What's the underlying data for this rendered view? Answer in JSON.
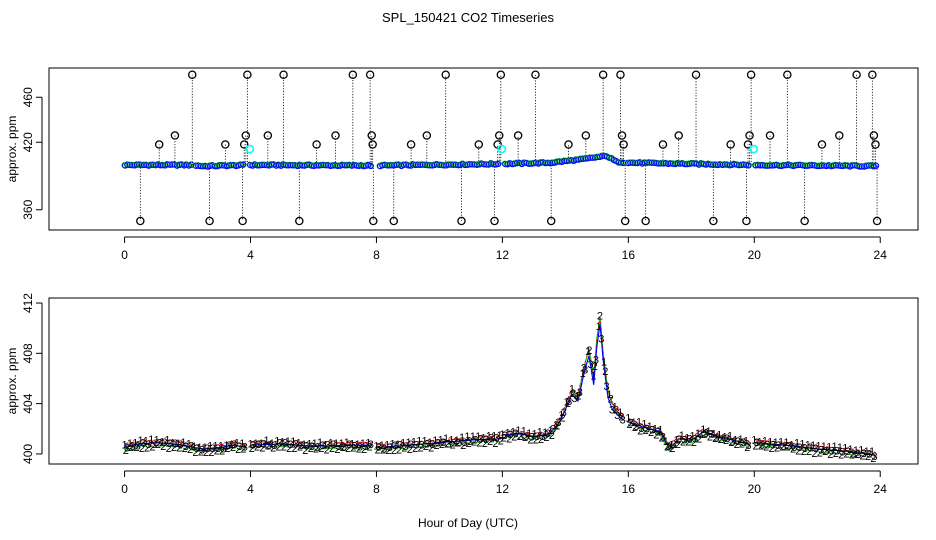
{
  "title": "SPL_150421  CO2 Timeseries",
  "xlabel": "Hour of Day (UTC)",
  "chart_data": [
    {
      "type": "scatter",
      "name": "top-panel",
      "ylabel": "approx. ppm",
      "xlim": [
        -2.4,
        25.2
      ],
      "ylim": [
        342,
        486
      ],
      "xticks": [
        0,
        4,
        8,
        12,
        16,
        20,
        24
      ],
      "yticks": [
        360,
        420,
        460
      ],
      "ytick_labels": [
        "360",
        "420",
        "460"
      ],
      "baseline_profile": [
        [
          0,
          400
        ],
        [
          2,
          400
        ],
        [
          2.5,
          399
        ],
        [
          4,
          400
        ],
        [
          8,
          399.5
        ],
        [
          12,
          401
        ],
        [
          13.5,
          402
        ],
        [
          14.5,
          405
        ],
        [
          15,
          407
        ],
        [
          15.3,
          408
        ],
        [
          15.6,
          403
        ],
        [
          16,
          402
        ],
        [
          17,
          401.5
        ],
        [
          18,
          401
        ],
        [
          19,
          400.5
        ],
        [
          20,
          400
        ],
        [
          22,
          399.5
        ],
        [
          23.8,
          399
        ]
      ],
      "gaps": [
        [
          2.1,
          2.25
        ],
        [
          3.8,
          3.95
        ],
        [
          7.85,
          8.05
        ],
        [
          11.9,
          12.05
        ],
        [
          15.85,
          15.95
        ],
        [
          19.85,
          19.95
        ]
      ],
      "spikes": [
        {
          "x": 0.5,
          "y": 350
        },
        {
          "x": 1.1,
          "y": 418
        },
        {
          "x": 1.6,
          "y": 426
        },
        {
          "x": 2.15,
          "y": 480
        },
        {
          "x": 2.7,
          "y": 350
        },
        {
          "x": 3.2,
          "y": 418
        },
        {
          "x": 3.75,
          "y": 350
        },
        {
          "x": 3.8,
          "y": 418
        },
        {
          "x": 3.85,
          "y": 426
        },
        {
          "x": 3.9,
          "y": 480
        },
        {
          "x": 4.55,
          "y": 426
        },
        {
          "x": 5.05,
          "y": 480
        },
        {
          "x": 5.55,
          "y": 350
        },
        {
          "x": 6.1,
          "y": 418
        },
        {
          "x": 6.7,
          "y": 426
        },
        {
          "x": 7.25,
          "y": 480
        },
        {
          "x": 7.8,
          "y": 480
        },
        {
          "x": 7.85,
          "y": 426
        },
        {
          "x": 7.88,
          "y": 418
        },
        {
          "x": 7.9,
          "y": 350
        },
        {
          "x": 8.55,
          "y": 350
        },
        {
          "x": 9.1,
          "y": 418
        },
        {
          "x": 9.6,
          "y": 426
        },
        {
          "x": 10.2,
          "y": 480
        },
        {
          "x": 10.7,
          "y": 350
        },
        {
          "x": 11.25,
          "y": 418
        },
        {
          "x": 11.75,
          "y": 350
        },
        {
          "x": 11.85,
          "y": 418
        },
        {
          "x": 11.9,
          "y": 426
        },
        {
          "x": 11.95,
          "y": 480
        },
        {
          "x": 12.5,
          "y": 426
        },
        {
          "x": 13.05,
          "y": 480
        },
        {
          "x": 13.55,
          "y": 350
        },
        {
          "x": 14.1,
          "y": 418
        },
        {
          "x": 14.65,
          "y": 426
        },
        {
          "x": 15.2,
          "y": 480
        },
        {
          "x": 15.75,
          "y": 480
        },
        {
          "x": 15.8,
          "y": 426
        },
        {
          "x": 15.85,
          "y": 418
        },
        {
          "x": 15.9,
          "y": 350
        },
        {
          "x": 16.55,
          "y": 350
        },
        {
          "x": 17.1,
          "y": 418
        },
        {
          "x": 17.6,
          "y": 426
        },
        {
          "x": 18.15,
          "y": 480
        },
        {
          "x": 18.7,
          "y": 350
        },
        {
          "x": 19.25,
          "y": 418
        },
        {
          "x": 19.75,
          "y": 350
        },
        {
          "x": 19.8,
          "y": 418
        },
        {
          "x": 19.85,
          "y": 426
        },
        {
          "x": 19.9,
          "y": 480
        },
        {
          "x": 20.5,
          "y": 426
        },
        {
          "x": 21.05,
          "y": 480
        },
        {
          "x": 21.6,
          "y": 350
        },
        {
          "x": 22.15,
          "y": 418
        },
        {
          "x": 22.7,
          "y": 426
        },
        {
          "x": 23.25,
          "y": 480
        },
        {
          "x": 23.75,
          "y": 480
        },
        {
          "x": 23.8,
          "y": 426
        },
        {
          "x": 23.85,
          "y": 418
        },
        {
          "x": 23.9,
          "y": 350
        }
      ],
      "cyan_points": [
        {
          "x": 3.98,
          "y": 414
        },
        {
          "x": 11.98,
          "y": 414
        },
        {
          "x": 19.98,
          "y": 414
        }
      ],
      "colors": {
        "spike": "#000000",
        "baseline": "#0000ff",
        "baseline_alt": "#00cc00",
        "cyan": "#00ffff"
      }
    },
    {
      "type": "line",
      "name": "bottom-panel",
      "ylabel": "approx. ppm",
      "xlim": [
        -2.4,
        25.2
      ],
      "ylim": [
        399.2,
        412.4
      ],
      "xticks": [
        0,
        4,
        8,
        12,
        16,
        20,
        24
      ],
      "yticks": [
        400,
        404,
        408,
        412
      ],
      "ytick_labels": [
        "400",
        "404",
        "408",
        "412"
      ],
      "segments": [
        [
          0,
          3.85
        ],
        [
          4.0,
          7.85
        ],
        [
          8.0,
          11.95
        ],
        [
          12.0,
          15.85
        ],
        [
          16.0,
          19.85
        ],
        [
          20.0,
          23.85
        ]
      ],
      "profile": [
        [
          0,
          400.6
        ],
        [
          0.5,
          400.8
        ],
        [
          1,
          400.9
        ],
        [
          1.5,
          400.8
        ],
        [
          2,
          400.6
        ],
        [
          2.5,
          400.4
        ],
        [
          3,
          400.5
        ],
        [
          3.5,
          400.7
        ],
        [
          3.85,
          400.5
        ],
        [
          4,
          400.7
        ],
        [
          5,
          400.8
        ],
        [
          6,
          400.6
        ],
        [
          7,
          400.7
        ],
        [
          7.85,
          400.7
        ],
        [
          8,
          400.5
        ],
        [
          9,
          400.7
        ],
        [
          10,
          400.9
        ],
        [
          11,
          401.1
        ],
        [
          11.95,
          401.2
        ],
        [
          12,
          401.5
        ],
        [
          12.5,
          401.6
        ],
        [
          13,
          401.4
        ],
        [
          13.5,
          401.6
        ],
        [
          13.8,
          402.5
        ],
        [
          14.0,
          403.5
        ],
        [
          14.2,
          404.8
        ],
        [
          14.4,
          404.2
        ],
        [
          14.6,
          406.5
        ],
        [
          14.75,
          407.8
        ],
        [
          14.9,
          405.5
        ],
        [
          15.0,
          408.5
        ],
        [
          15.1,
          410.3
        ],
        [
          15.2,
          407.5
        ],
        [
          15.35,
          404.5
        ],
        [
          15.5,
          403.5
        ],
        [
          15.7,
          403.0
        ],
        [
          15.85,
          402.7
        ],
        [
          16,
          402.5
        ],
        [
          16.5,
          402.1
        ],
        [
          17,
          401.8
        ],
        [
          17.3,
          400.4
        ],
        [
          17.6,
          401.2
        ],
        [
          18,
          401.1
        ],
        [
          18.4,
          401.8
        ],
        [
          18.8,
          401.4
        ],
        [
          19.3,
          401.1
        ],
        [
          19.85,
          400.8
        ],
        [
          20,
          400.9
        ],
        [
          21,
          400.7
        ],
        [
          22,
          400.4
        ],
        [
          23,
          400.2
        ],
        [
          23.85,
          399.9
        ]
      ],
      "series": [
        {
          "name": "1",
          "label": "1",
          "color": "#ff0000",
          "offset": 0.22,
          "peak_offset": 0.4
        },
        {
          "name": "2",
          "label": "2",
          "color": "#00cc00",
          "offset": -0.22,
          "peak_offset": 0.9
        },
        {
          "name": "3",
          "label": "3",
          "color": "#0000ff",
          "offset": 0.0,
          "peak_offset": 0.0
        }
      ]
    }
  ]
}
